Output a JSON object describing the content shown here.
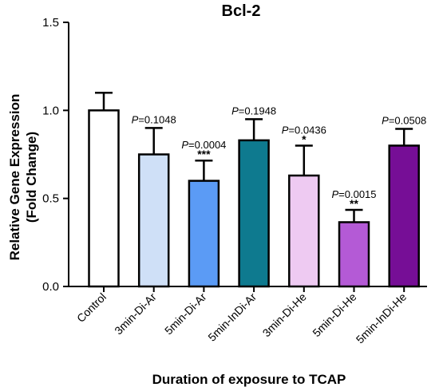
{
  "chart_data": {
    "type": "bar",
    "title": "Bcl-2",
    "xlabel": "Duration of exposure to TCAP",
    "ylabel_line1": "Relative Gene Expression",
    "ylabel_line2": "(Fold Change)",
    "ylim": [
      0,
      1.5
    ],
    "yticks": [
      "0.0",
      "0.5",
      "1.0",
      "1.5"
    ],
    "ytick_values": [
      0,
      0.5,
      1.0,
      1.5
    ],
    "grid": false,
    "categories": [
      "Control",
      "3min-Di-Ar",
      "5min-Di-Ar",
      "5min-InDi-Ar",
      "3min-Di-He",
      "5min-Di-He",
      "5min-InDi-He"
    ],
    "values": [
      1.0,
      0.75,
      0.6,
      0.83,
      0.63,
      0.365,
      0.8
    ],
    "errors": [
      0.1,
      0.15,
      0.115,
      0.12,
      0.17,
      0.07,
      0.095
    ],
    "colors": [
      "#ffffff",
      "#cfe0f7",
      "#5b9bf5",
      "#0e7a8f",
      "#eecaf2",
      "#b45ad6",
      "#760e96"
    ],
    "p_prefix": "P",
    "p_values": [
      "",
      "=0.1048",
      "=0.0004",
      "=0.1948",
      "=0.0436",
      "=0.0015",
      "=0.0508"
    ],
    "stars": [
      "",
      "",
      "***",
      "",
      "*",
      "**",
      ""
    ]
  }
}
